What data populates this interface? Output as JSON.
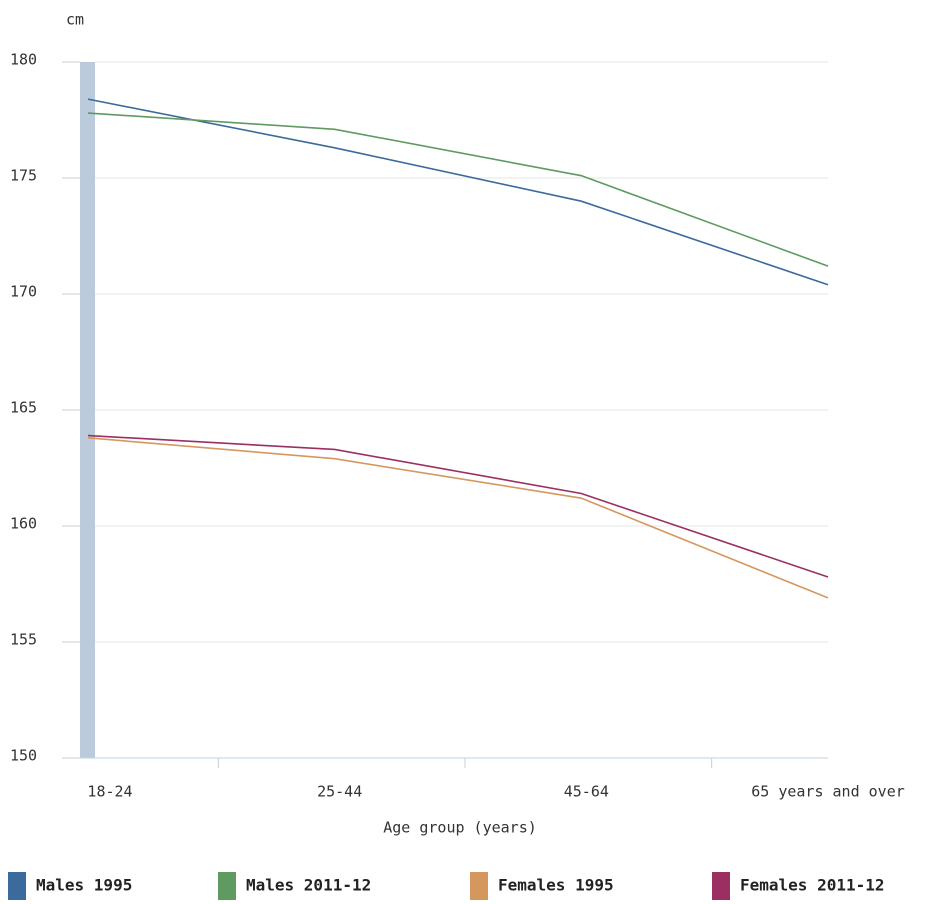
{
  "chart_data": {
    "type": "line",
    "y_label": "cm",
    "x_label": "Age group (years)",
    "categories": [
      "18-24",
      "25-44",
      "45-64",
      "65 years and over"
    ],
    "series": [
      {
        "name": "Males 1995",
        "color": "#3b6a9c",
        "values": [
          178.4,
          176.3,
          174.0,
          170.4
        ]
      },
      {
        "name": "Males 2011-12",
        "color": "#5f9a60",
        "values": [
          177.8,
          177.1,
          175.1,
          171.2
        ]
      },
      {
        "name": "Females 1995",
        "color": "#d4985f",
        "values": [
          163.8,
          162.9,
          161.2,
          156.9
        ]
      },
      {
        "name": "Females 2011-12",
        "color": "#9b2f61",
        "values": [
          163.9,
          163.3,
          161.4,
          157.8
        ]
      }
    ],
    "ylim": [
      150,
      180
    ],
    "yticks": [
      150,
      155,
      160,
      165,
      170,
      175,
      180
    ],
    "grid": true
  }
}
